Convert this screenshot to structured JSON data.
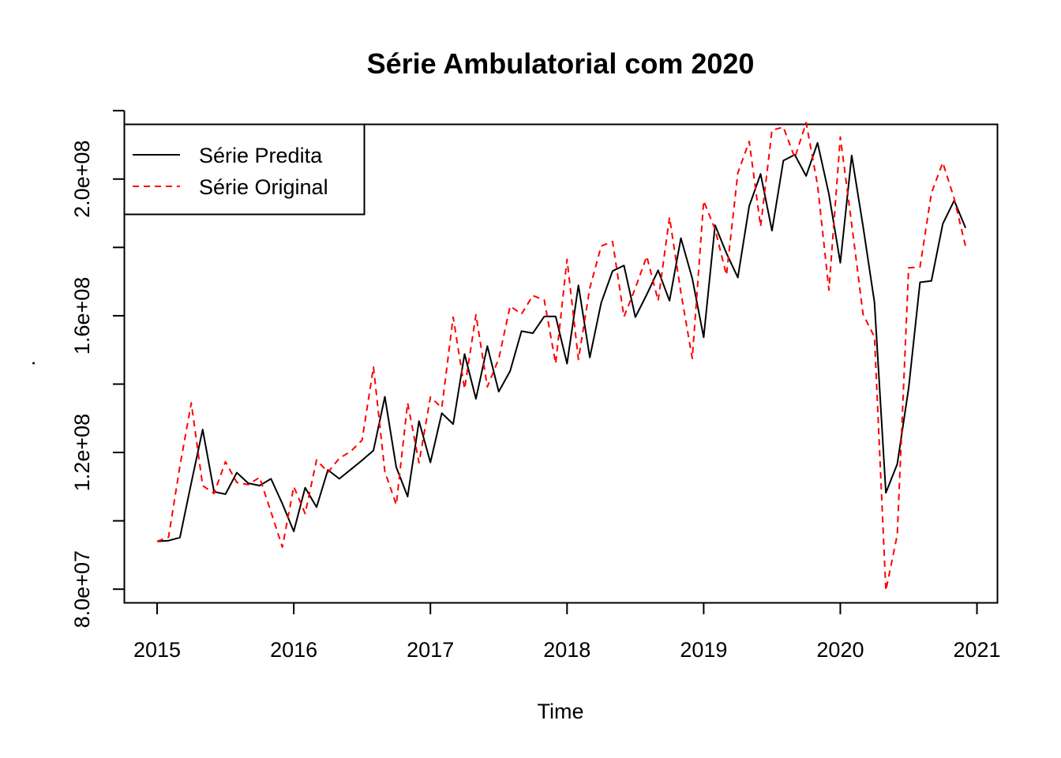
{
  "chart_data": {
    "type": "line",
    "title": "Série Ambulatorial com 2020",
    "xlabel": "Time",
    "ylabel": ".",
    "xlim": [
      2014.76,
      2021.15
    ],
    "ylim": [
      76000000,
      216000000
    ],
    "x_ticks": [
      {
        "value": 2015,
        "label": "2015"
      },
      {
        "value": 2016,
        "label": "2016"
      },
      {
        "value": 2017,
        "label": "2017"
      },
      {
        "value": 2018,
        "label": "2018"
      },
      {
        "value": 2019,
        "label": "2019"
      },
      {
        "value": 2020,
        "label": "2020"
      },
      {
        "value": 2021,
        "label": "2021"
      }
    ],
    "y_ticks": [
      {
        "value": 80000000,
        "label": "8.0e+07"
      },
      {
        "value": 100000000,
        "label": ""
      },
      {
        "value": 120000000,
        "label": "1.2e+08"
      },
      {
        "value": 140000000,
        "label": ""
      },
      {
        "value": 160000000,
        "label": "1.6e+08"
      },
      {
        "value": 180000000,
        "label": ""
      },
      {
        "value": 200000000,
        "label": "2.0e+08"
      },
      {
        "value": 220000000,
        "label": ""
      }
    ],
    "x_start": 2015,
    "frequency": 12,
    "legend": {
      "position": "top-left"
    },
    "grid": false,
    "series": [
      {
        "name": "Série Predita",
        "color": "#000000",
        "dash": "solid",
        "values": [
          94000000,
          94200000,
          95100000,
          111100000,
          126700000,
          108500000,
          107800000,
          114100000,
          111000000,
          110300000,
          112300000,
          105000000,
          96900000,
          109700000,
          104000000,
          114900000,
          112300000,
          115000000,
          117700000,
          120600000,
          136300000,
          115700000,
          107100000,
          129200000,
          117100000,
          131500000,
          128300000,
          148800000,
          135700000,
          151100000,
          137800000,
          143800000,
          155500000,
          154900000,
          159800000,
          159800000,
          146000000,
          168900000,
          147800000,
          163800000,
          173100000,
          174700000,
          159600000,
          166200000,
          173300000,
          164400000,
          182700000,
          170900000,
          153700000,
          186500000,
          178300000,
          171200000,
          192100000,
          201500000,
          184900000,
          205400000,
          207100000,
          200900000,
          210600000,
          195600000,
          175500000,
          206900000,
          186100000,
          163900000,
          108200000,
          116600000,
          138800000,
          169800000,
          170200000,
          186900000,
          193700000,
          185700000
        ]
      },
      {
        "name": "Série Original",
        "color": "#ff0000",
        "dash": "dashed",
        "values": [
          94000000,
          95200000,
          116000000,
          134500000,
          110300000,
          108000000,
          117300000,
          111200000,
          110600000,
          112700000,
          102600000,
          92300000,
          110000000,
          102100000,
          117800000,
          114200000,
          118300000,
          120300000,
          123600000,
          145000000,
          114400000,
          104700000,
          134500000,
          117000000,
          136200000,
          133100000,
          159600000,
          138600000,
          160300000,
          139200000,
          147400000,
          162800000,
          160500000,
          165900000,
          164600000,
          146000000,
          176500000,
          147200000,
          168100000,
          180400000,
          181700000,
          159700000,
          168100000,
          177400000,
          164400000,
          188800000,
          166800000,
          147500000,
          193600000,
          185300000,
          171900000,
          201800000,
          211000000,
          186100000,
          214300000,
          215200000,
          206200000,
          216500000,
          198300000,
          167500000,
          212300000,
          186800000,
          160400000,
          153800000,
          79600000,
          95900000,
          174000000,
          174300000,
          195900000,
          204800000,
          194300000,
          180300000
        ]
      }
    ]
  }
}
